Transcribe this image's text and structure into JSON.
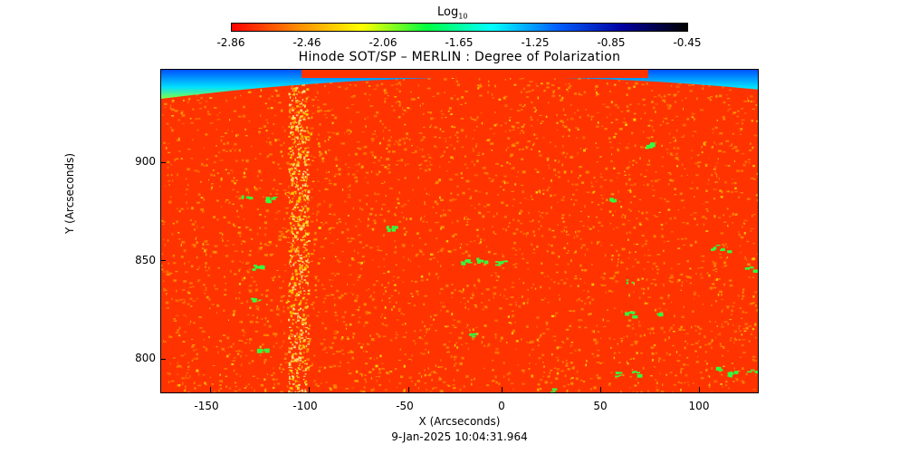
{
  "colorbar": {
    "label_main": "Log",
    "label_sub": "10",
    "ticks": [
      "-2.86",
      "-2.46",
      "-2.06",
      "-1.65",
      "-1.25",
      "-0.85",
      "-0.45"
    ],
    "colors": [
      "#ff0000",
      "#ff8a00",
      "#ffff00",
      "#00ff40",
      "#00ffff",
      "#0060ff",
      "#0000a0",
      "#000000"
    ]
  },
  "title": "Hinode SOT/SP – MERLIN : Degree of Polarization",
  "axes": {
    "xlabel": "X (Arcseconds)",
    "ylabel": "Y (Arcseconds)",
    "xticks": [
      "-150",
      "-100",
      "-50",
      "0",
      "50",
      "100"
    ],
    "yticks": [
      "800",
      "850",
      "900"
    ],
    "xrange": [
      -172,
      130
    ],
    "yrange": [
      782,
      947
    ]
  },
  "timestamp": "9-Jan-2025 10:04:31.964",
  "image_colors": {
    "background": "#ff3300",
    "speckle_orange": "#ff8c00",
    "speckle_yellow": "#ffd000",
    "patch_green": "#30ff40",
    "limb_blue": "#0050ff",
    "limb_cyan": "#00e0ff"
  }
}
